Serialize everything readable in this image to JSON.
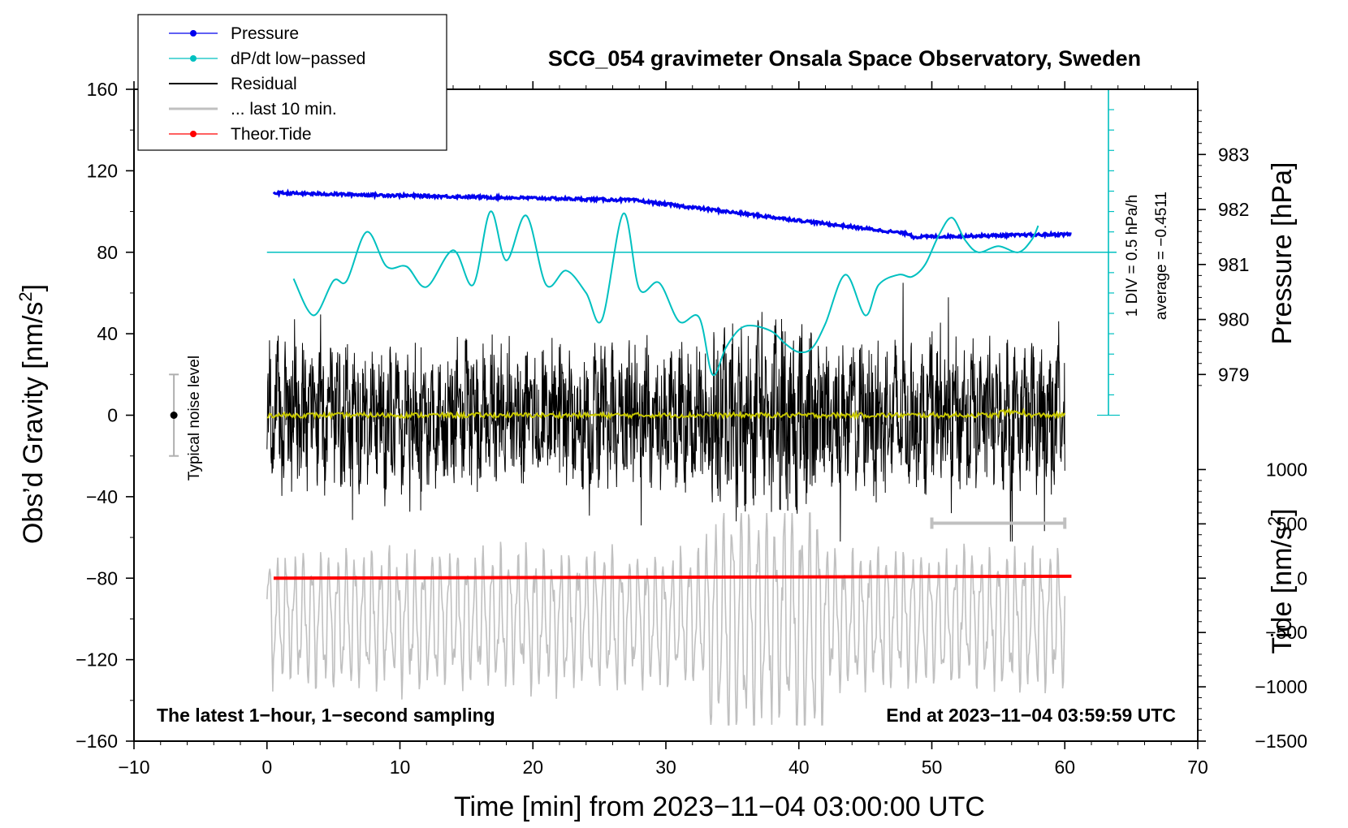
{
  "chart_data": {
    "type": "line",
    "title": "SCG_054 gravimeter Onsala Space Observatory, Sweden",
    "xlabel": "Time [min] from 2023−11−04 03:00:00 UTC",
    "xlim": [
      -10,
      70
    ],
    "x_ticks": [
      -10,
      0,
      10,
      20,
      30,
      40,
      50,
      60,
      70
    ],
    "x_tick_labels": [
      "−10",
      "0",
      "10",
      "20",
      "30",
      "40",
      "50",
      "60",
      "70"
    ],
    "left_axis": {
      "label_main": "Obs’d Gravity [nm/s",
      "label_sup": "2",
      "label_close": "]",
      "ylim": [
        -160,
        160
      ],
      "ticks": [
        -160,
        -120,
        -80,
        -40,
        0,
        40,
        80,
        120,
        160
      ],
      "tick_labels": [
        "−160",
        "−120",
        "−80",
        "−40",
        "0",
        "40",
        "80",
        "120",
        "160"
      ]
    },
    "pressure_axis": {
      "label": "Pressure [hPa]",
      "tick_values": [
        979,
        980,
        981,
        982,
        983
      ],
      "tick_labels": [
        "979",
        "980",
        "981",
        "982",
        "983"
      ],
      "gravity_at_979": 20,
      "gravity_per_hPa": 27
    },
    "tide_axis": {
      "label_main": "Tide [nm/s",
      "label_sup": "2",
      "label_close": "]",
      "tick_values": [
        -1500,
        -1000,
        -500,
        0,
        500,
        1000
      ],
      "tick_labels": [
        "−1500",
        "−1000",
        "−500",
        "0",
        "500",
        "1000"
      ],
      "gravity_at_zero": -80,
      "gravity_per_unit": 0.05333
    },
    "series": [
      {
        "name": "Pressure",
        "color": "#0000ee",
        "unit": "hPa",
        "x_range": [
          0.5,
          60.5
        ],
        "start_value": 982.3,
        "end_value": 981.55,
        "min_value": 981.5
      },
      {
        "name": "dP/dt low−passed",
        "color": "#00c0c0",
        "unit": "gravity-axis",
        "x": [
          2,
          3.5,
          5,
          6,
          7.5,
          9,
          10.5,
          12,
          14,
          15.5,
          16.8,
          18,
          19.5,
          21,
          22.5,
          24,
          25.2,
          26.8,
          28,
          29.5,
          31,
          32.5,
          33.5,
          34.5,
          35.5,
          36.5,
          38,
          39,
          40,
          41,
          42,
          43.5,
          45,
          46,
          47.5,
          48.5,
          49.5,
          50.5,
          51.5,
          52.5,
          53.5,
          55,
          56.5,
          57.5,
          58
        ],
        "y": [
          67,
          49,
          66,
          66,
          90,
          73,
          73,
          63,
          81,
          64,
          100,
          76,
          98,
          64,
          71,
          60,
          47,
          99,
          62,
          65,
          46,
          48,
          20,
          33,
          42,
          44,
          41,
          35,
          31,
          33,
          45,
          69,
          49,
          64,
          69,
          68,
          74,
          88,
          97,
          86,
          80,
          83,
          80,
          86,
          93
        ]
      },
      {
        "name": "Residual",
        "color": "#000000",
        "x_range": [
          0,
          60
        ],
        "amplitude_range": [
          -62,
          65
        ]
      },
      {
        "name": "... last 10 min.",
        "color": "#c0c0c0",
        "x_range": [
          0,
          60
        ],
        "center": -100,
        "amplitude_range": [
          -152,
          -48
        ]
      },
      {
        "name": "Theor.Tide",
        "color": "#ff0000",
        "unit": "nm/s2",
        "x_range": [
          0.5,
          60.5
        ],
        "start_value": 0,
        "end_value": 18
      }
    ],
    "mean_trace": {
      "color": "#c8c800",
      "x_range": [
        0,
        60
      ],
      "value": 0
    },
    "legend": [
      {
        "label": "Pressure",
        "color": "#0000ee",
        "marker": true
      },
      {
        "label": "dP/dt low−passed",
        "color": "#00c0c0",
        "marker": true
      },
      {
        "label": "Residual",
        "color": "#000000",
        "marker": false
      },
      {
        "label": "... last 10 min.",
        "color": "#c0c0c0",
        "marker": false
      },
      {
        "label": "Theor.Tide",
        "color": "#ff0000",
        "marker": true
      }
    ],
    "dpdt_scale": {
      "text_div": "1 DIV = 0.5 hPa/h",
      "text_avg": "average = −0.4511",
      "baseline_gravity": 80,
      "top_gravity": 160,
      "bottom_gravity": 0
    },
    "noise_level": {
      "label": "Typical noise level",
      "x": -7,
      "center": 0,
      "low": -20,
      "high": 20
    },
    "last10_bracket": {
      "x_start": 50,
      "x_end": 60,
      "y": -53
    },
    "annotations": {
      "bottom_left": "The latest 1−hour, 1−second sampling",
      "bottom_right": "End at 2023−11−04 03:59:59 UTC"
    }
  }
}
